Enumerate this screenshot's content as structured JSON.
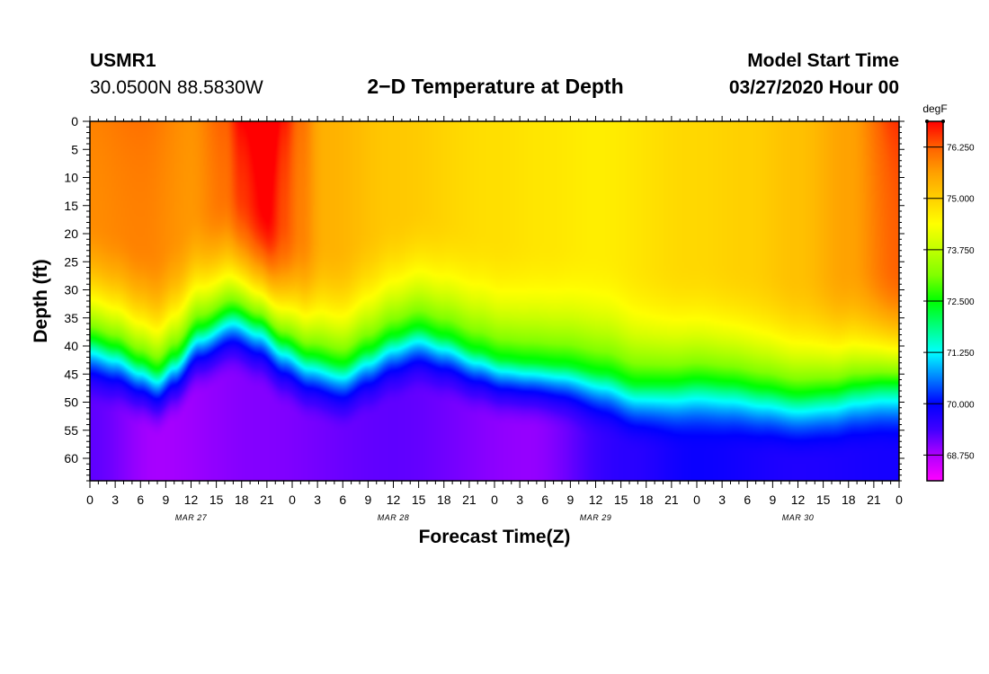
{
  "header": {
    "station": "USMR1",
    "coordinates": "30.0500N 88.5830W",
    "title": "2−D Temperature at Depth",
    "model_start_label": "Model Start Time",
    "model_start_value": "03/27/2020 Hour 00"
  },
  "chart_data": {
    "type": "heatmap",
    "title": "2−D Temperature at Depth",
    "xlabel": "Forecast Time(Z)",
    "ylabel": "Depth (ft)",
    "x_range_hours": [
      0,
      96
    ],
    "y_range_ft": [
      0,
      64
    ],
    "y_inverted": true,
    "x_tick_labels": [
      "0",
      "3",
      "6",
      "9",
      "12",
      "15",
      "18",
      "21",
      "0",
      "3",
      "6",
      "9",
      "12",
      "15",
      "18",
      "21",
      "0",
      "3",
      "6",
      "9",
      "12",
      "15",
      "18",
      "21",
      "0",
      "3",
      "6",
      "9",
      "12",
      "15",
      "18",
      "21",
      "0"
    ],
    "day_labels": [
      "MAR 27",
      "MAR 28",
      "MAR 29",
      "MAR 30"
    ],
    "y_ticks": [
      0,
      5,
      10,
      15,
      20,
      25,
      30,
      35,
      40,
      45,
      50,
      55,
      60
    ],
    "colorbar": {
      "unit": "degF",
      "min": 68.125,
      "max": 76.875,
      "ticks": [
        "76.250",
        "75.000",
        "73.750",
        "72.500",
        "71.250",
        "70.000",
        "68.750"
      ],
      "colors": [
        "#ff00ff",
        "#b000ff",
        "#4000ff",
        "#0000ff",
        "#0080ff",
        "#00ffff",
        "#00ff80",
        "#00ff00",
        "#80ff00",
        "#c0ff00",
        "#ffff00",
        "#ffd000",
        "#ffa000",
        "#ff6000",
        "#ff0000"
      ]
    },
    "thermocline_depth_ft": {
      "hours": [
        0,
        3,
        6,
        8,
        10,
        13,
        17,
        20,
        23,
        26,
        30,
        33,
        36,
        39,
        42,
        46,
        49,
        52,
        56,
        61,
        65,
        69,
        72,
        76,
        80,
        84,
        88,
        91,
        94,
        96
      ],
      "depth": [
        39,
        40.5,
        43,
        44.5,
        42,
        37,
        34,
        36,
        39.5,
        42,
        43.5,
        41,
        38.5,
        37,
        38.5,
        41,
        42.5,
        43,
        43.5,
        45,
        47,
        47,
        46.5,
        47,
        48,
        49,
        48.5,
        47.5,
        47,
        47
      ]
    },
    "surface_layer_temp_degF": {
      "hours": [
        0,
        6,
        12,
        16,
        18,
        21,
        23,
        25,
        28,
        36,
        48,
        54,
        60,
        72,
        78,
        84,
        90,
        96
      ],
      "temp": [
        75.8,
        75.9,
        75.7,
        76.0,
        76.4,
        76.8,
        76.3,
        75.9,
        75.4,
        75.1,
        74.8,
        74.7,
        74.6,
        74.9,
        75.0,
        75.2,
        75.6,
        76.2
      ]
    },
    "deep_layer_temp_degF": {
      "hours": [
        0,
        8,
        20,
        36,
        52,
        64,
        72,
        84,
        96
      ],
      "temp": [
        69.2,
        68.8,
        69.0,
        69.2,
        68.9,
        69.6,
        69.9,
        69.7,
        69.8
      ]
    }
  }
}
